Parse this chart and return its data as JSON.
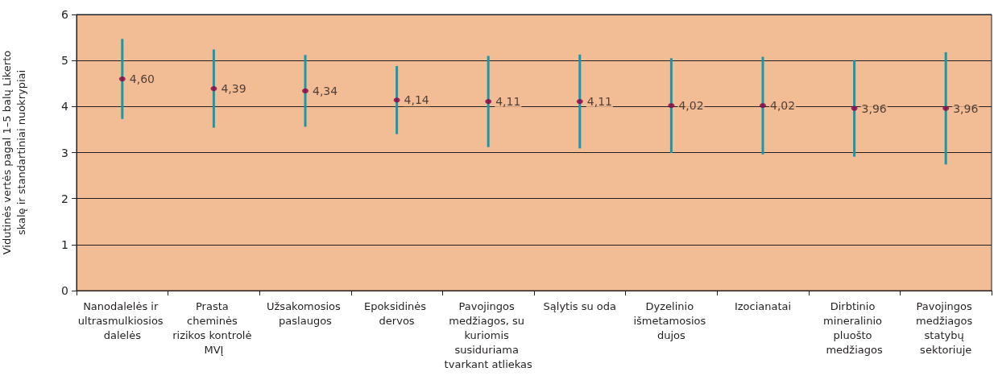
{
  "chart_data": {
    "type": "scatter",
    "ylabel": "Vidutinės vertės pagal 1–5 balų Likerto skalę ir standartiniai nuokrypiai",
    "categories": [
      "Nanodalelės ir ultrasmulkiosios dalelės",
      "Prasta cheminės rizikos kontrolė MVĮ",
      "Užsakomosios paslaugos",
      "Epoksidinės dervos",
      "Pavojingos medžiagos, su kuriomis susiduriama tvarkant atliekas",
      "Sąlytis su oda",
      "Dyzelinio išmetamosios dujos",
      "Izocianatai",
      "Dirbtinio mineralinio pluošto medžiagos",
      "Pavojingos medžiagos statybų sektoriuje"
    ],
    "series": [
      {
        "color": "#8b0045",
        "values": [
          4.6,
          4.39,
          4.34,
          4.14,
          4.11,
          4.11,
          4.02,
          4.02,
          3.96,
          3.96
        ],
        "errors": [
          0.87,
          0.85,
          0.78,
          0.74,
          0.99,
          1.02,
          1.03,
          1.06,
          1.05,
          1.22
        ],
        "value_labels": [
          "4,60",
          "4,39",
          "4,34",
          "4,14",
          "4,11",
          "4,11",
          "4,02",
          "4,02",
          "3,96",
          "3,96"
        ]
      }
    ],
    "ylim": [
      0,
      6
    ],
    "yticks": [
      0,
      1,
      2,
      3,
      4,
      5,
      6
    ],
    "grid": "y",
    "marker": "circle"
  }
}
